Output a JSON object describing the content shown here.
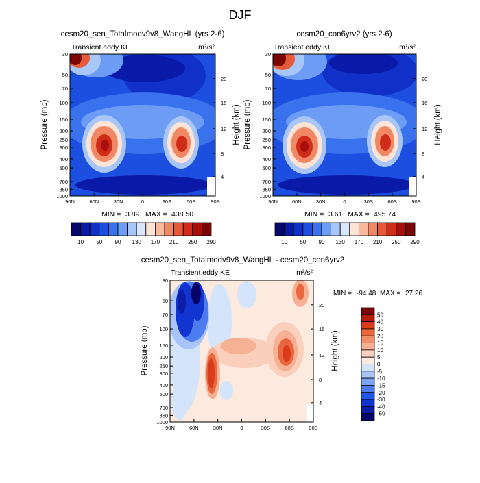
{
  "page_title": "DJF",
  "colors": {
    "abs_scale": [
      "#08086b",
      "#0a1aa8",
      "#1030c8",
      "#1c4ee0",
      "#3a72ee",
      "#6c9cf4",
      "#a8c6f8",
      "#d8e6fb",
      "#fde4d6",
      "#f8b89e",
      "#f08866",
      "#e65a3a",
      "#d02c1a",
      "#a80e0c",
      "#7a0606"
    ],
    "diff_scale": [
      "#040468",
      "#0c1ea8",
      "#1234d0",
      "#2256e6",
      "#4c7cef",
      "#7ca2f3",
      "#a8c4f8",
      "#d4e4fb",
      "#fdeadf",
      "#fad0bc",
      "#f6b094",
      "#f08e6c",
      "#e9663e",
      "#d93c1a",
      "#b81c0a",
      "#7a0606"
    ]
  },
  "chart_data": [
    {
      "type": "heatmap",
      "title": "cesm20_sen_Totalmodv9v8_WangHL (yrs 2-6)",
      "left_label": "Transient eddy KE",
      "units_label": "m²/s²",
      "xlabel": "",
      "ylabel": "Pressure (mb)",
      "ylabel_right": "Height (km)",
      "x_ticks": [
        "90N",
        "60N",
        "30N",
        "0",
        "30S",
        "60S",
        "90S"
      ],
      "y_ticks": [
        "30",
        "50",
        "70",
        "100",
        "150",
        "200",
        "250",
        "300",
        "400",
        "500",
        "700",
        "850",
        "1000"
      ],
      "height_ticks": [
        "20",
        "16",
        "12",
        "8",
        "4"
      ],
      "min_label": "MIN =",
      "min_value": "3.89",
      "max_label": "MAX =",
      "max_value": "438.50",
      "colorbar_labels": [
        "10",
        "50",
        "90",
        "130",
        "170",
        "210",
        "250",
        "290"
      ],
      "colorbar_levels": [
        10,
        30,
        50,
        70,
        90,
        110,
        130,
        150,
        170,
        190,
        210,
        230,
        250,
        270,
        290
      ]
    },
    {
      "type": "heatmap",
      "title": "cesm20_con6yrv2 (yrs 2-6)",
      "left_label": "Transient eddy KE",
      "units_label": "m²/s²",
      "xlabel": "",
      "ylabel": "Pressure (mb)",
      "ylabel_right": "Height (km)",
      "x_ticks": [
        "90N",
        "60N",
        "30N",
        "0",
        "30S",
        "60S",
        "90S"
      ],
      "y_ticks": [
        "30",
        "50",
        "70",
        "100",
        "150",
        "200",
        "250",
        "300",
        "400",
        "500",
        "700",
        "850",
        "1000"
      ],
      "height_ticks": [
        "20",
        "16",
        "12",
        "8",
        "4"
      ],
      "min_label": "MIN =",
      "min_value": "3.61",
      "max_label": "MAX =",
      "max_value": "495.74",
      "colorbar_labels": [
        "10",
        "50",
        "90",
        "130",
        "170",
        "210",
        "250",
        "290"
      ],
      "colorbar_levels": [
        10,
        30,
        50,
        70,
        90,
        110,
        130,
        150,
        170,
        190,
        210,
        230,
        250,
        270,
        290
      ]
    },
    {
      "type": "heatmap",
      "title": "cesm20_sen_Totalmodv9v8_WangHL - cesm20_con6yrv2",
      "left_label": "Transient eddy KE",
      "units_label": "m²/s²",
      "xlabel": "",
      "ylabel": "Pressure (mb)",
      "ylabel_right": "Height (km)",
      "x_ticks": [
        "90N",
        "60N",
        "30N",
        "0",
        "30S",
        "60S",
        "90S"
      ],
      "y_ticks": [
        "30",
        "50",
        "70",
        "100",
        "150",
        "200",
        "250",
        "300",
        "400",
        "500",
        "700",
        "850",
        "1000"
      ],
      "height_ticks": [
        "20",
        "16",
        "12",
        "8",
        "4"
      ],
      "min_label": "MIN =",
      "min_value": "-94.48",
      "max_label": "MAX =",
      "max_value": "27.26",
      "colorbar_labels": [
        "50",
        "40",
        "30",
        "20",
        "15",
        "10",
        "5",
        "0",
        "-5",
        "-10",
        "-15",
        "-20",
        "-30",
        "-40",
        "-50"
      ],
      "colorbar_levels": [
        -50,
        -40,
        -30,
        -20,
        -15,
        -10,
        -5,
        0,
        5,
        10,
        15,
        20,
        30,
        40,
        50
      ]
    }
  ]
}
